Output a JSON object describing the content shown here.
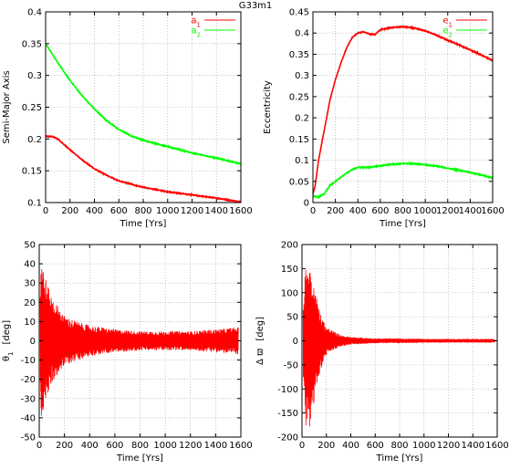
{
  "figure_title": "G33m1",
  "chart_data": [
    {
      "id": "semi-major-axis",
      "type": "line",
      "xlabel": "Time [Yrs]",
      "ylabel": "Semi-Major Axis",
      "xlim": [
        0,
        1600
      ],
      "ylim": [
        0.1,
        0.4
      ],
      "xticks": [
        0,
        200,
        400,
        600,
        800,
        1000,
        1200,
        1400,
        1600
      ],
      "yticks": [
        0.1,
        0.15,
        0.2,
        0.25,
        0.3,
        0.35,
        0.4
      ],
      "ytick_labels": [
        "0.1",
        "0.15",
        "0.2",
        "0.25",
        "0.3",
        "0.35",
        "0.4"
      ],
      "grid": true,
      "legend_position": "top-right",
      "series": [
        {
          "name": "a",
          "sub": "1",
          "color": "#ff0000",
          "x": [
            0,
            50,
            100,
            200,
            300,
            400,
            500,
            600,
            800,
            1000,
            1200,
            1400,
            1600
          ],
          "y": [
            0.204,
            0.204,
            0.2,
            0.183,
            0.167,
            0.153,
            0.143,
            0.134,
            0.124,
            0.117,
            0.112,
            0.107,
            0.101
          ]
        },
        {
          "name": "a",
          "sub": "2",
          "color": "#00ff00",
          "x": [
            0,
            100,
            200,
            300,
            400,
            500,
            600,
            700,
            800,
            1000,
            1200,
            1400,
            1600
          ],
          "y": [
            0.35,
            0.32,
            0.292,
            0.268,
            0.247,
            0.229,
            0.215,
            0.205,
            0.198,
            0.188,
            0.178,
            0.17,
            0.161
          ]
        }
      ]
    },
    {
      "id": "eccentricity",
      "type": "line",
      "xlabel": "Time [Yrs]",
      "ylabel": "Eccentricity",
      "xlim": [
        0,
        1600
      ],
      "ylim": [
        0,
        0.45
      ],
      "xticks": [
        0,
        200,
        400,
        600,
        800,
        1000,
        1200,
        1400,
        1600
      ],
      "yticks": [
        0,
        0.05,
        0.1,
        0.15,
        0.2,
        0.25,
        0.3,
        0.35,
        0.4,
        0.45
      ],
      "ytick_labels": [
        "0",
        "0.05",
        "0.1",
        "0.15",
        "0.2",
        "0.25",
        "0.3",
        "0.35",
        "0.4",
        "0.45"
      ],
      "grid": true,
      "legend_position": "top-right",
      "series": [
        {
          "name": "e",
          "sub": "1",
          "color": "#ff0000",
          "x": [
            0,
            20,
            50,
            100,
            150,
            200,
            250,
            300,
            350,
            400,
            450,
            500,
            550,
            600,
            700,
            800,
            900,
            1000,
            1100,
            1200,
            1300,
            1400,
            1500,
            1600
          ],
          "y": [
            0.02,
            0.04,
            0.1,
            0.17,
            0.24,
            0.29,
            0.33,
            0.365,
            0.39,
            0.4,
            0.403,
            0.398,
            0.396,
            0.408,
            0.413,
            0.415,
            0.412,
            0.405,
            0.395,
            0.383,
            0.372,
            0.36,
            0.348,
            0.335
          ]
        },
        {
          "name": "e",
          "sub": "2",
          "color": "#00ff00",
          "x": [
            0,
            50,
            100,
            150,
            200,
            250,
            300,
            350,
            400,
            500,
            600,
            700,
            800,
            900,
            1000,
            1100,
            1200,
            1300,
            1400,
            1500,
            1600
          ],
          "y": [
            0.015,
            0.013,
            0.02,
            0.04,
            0.05,
            0.06,
            0.07,
            0.078,
            0.083,
            0.083,
            0.087,
            0.09,
            0.092,
            0.092,
            0.089,
            0.086,
            0.081,
            0.076,
            0.071,
            0.065,
            0.058
          ]
        }
      ]
    },
    {
      "id": "theta1",
      "type": "line",
      "xlabel": "Time [Yrs]",
      "ylabel": "θ",
      "ylabel_sub": "1",
      "ylabel_unit": "[deg]",
      "xlim": [
        0,
        1600
      ],
      "ylim": [
        -50,
        50
      ],
      "xticks": [
        0,
        200,
        400,
        600,
        800,
        1000,
        1200,
        1400,
        1600
      ],
      "yticks": [
        -50,
        -40,
        -30,
        -20,
        -10,
        0,
        10,
        20,
        30,
        40,
        50
      ],
      "ytick_labels": [
        "-50",
        "-40",
        "-30",
        "-20",
        "-10",
        "0",
        "10",
        "20",
        "30",
        "40",
        "50"
      ],
      "grid": true,
      "series": [
        {
          "color": "#ff0000",
          "style": "oscillation",
          "x_start": 8,
          "x_end": 1580,
          "envelope_x": [
            8,
            15,
            30,
            60,
            100,
            150,
            200,
            300,
            400,
            600,
            800,
            1000,
            1200,
            1400,
            1580
          ],
          "envelope_upper": [
            30,
            46,
            40,
            30,
            23,
            18,
            13,
            10,
            8,
            6,
            5,
            5,
            5,
            6,
            7
          ],
          "envelope_lower": [
            -30,
            -40,
            -38,
            -30,
            -22,
            -17,
            -13,
            -10,
            -8,
            -6,
            -5,
            -5,
            -5,
            -6,
            -7
          ]
        }
      ]
    },
    {
      "id": "delta-varpi",
      "type": "line",
      "xlabel": "Time [Yrs]",
      "ylabel": "Δ ϖ",
      "ylabel_unit": "[deg]",
      "xlim": [
        0,
        1600
      ],
      "ylim": [
        -200,
        200
      ],
      "xticks": [
        0,
        200,
        400,
        600,
        800,
        1000,
        1200,
        1400,
        1600
      ],
      "yticks": [
        -200,
        -150,
        -100,
        -50,
        0,
        50,
        100,
        150,
        200
      ],
      "ytick_labels": [
        "-200",
        "-150",
        "-100",
        "-50",
        "0",
        "50",
        "100",
        "150",
        "200"
      ],
      "grid": true,
      "series": [
        {
          "color": "#ff0000",
          "style": "oscillation",
          "x_start": 10,
          "x_end": 1580,
          "envelope_x": [
            10,
            30,
            60,
            90,
            120,
            160,
            200,
            260,
            320,
            400,
            600,
            800,
            1000,
            1200,
            1400,
            1580
          ],
          "envelope_upper": [
            80,
            160,
            170,
            130,
            90,
            50,
            30,
            20,
            12,
            8,
            5,
            5,
            4,
            4,
            4,
            4
          ],
          "envelope_lower": [
            -80,
            -175,
            -185,
            -150,
            -100,
            -55,
            -30,
            -20,
            -12,
            -8,
            -5,
            -5,
            -4,
            -4,
            -4,
            -4
          ]
        }
      ]
    }
  ]
}
